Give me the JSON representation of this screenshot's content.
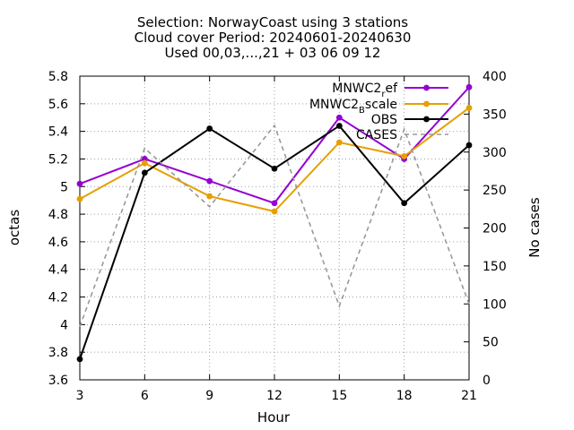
{
  "chart_data": {
    "type": "line",
    "title_lines": [
      "Selection: NorwayCoast using     3 stations",
      "Cloud cover   Period: 20240601-20240630",
      "Used 00,03,...,21 + 03 06 09 12"
    ],
    "xlabel": "Hour",
    "ylabel": "octas",
    "y2label": "No cases",
    "x": [
      3,
      6,
      9,
      12,
      15,
      18,
      21
    ],
    "xlim": [
      3,
      21
    ],
    "ylim": [
      3.6,
      5.8
    ],
    "y2lim": [
      0,
      400
    ],
    "x_ticks": [
      "3",
      "6",
      "9",
      "12",
      "15",
      "18",
      "21"
    ],
    "y_ticks": [
      "3.6",
      "3.8",
      "4",
      "4.2",
      "4.4",
      "4.6",
      "4.8",
      "5",
      "5.2",
      "5.4",
      "5.6",
      "5.8"
    ],
    "y2_ticks": [
      "0",
      "50",
      "100",
      "150",
      "200",
      "250",
      "300",
      "350",
      "400"
    ],
    "legend_position": "top-right",
    "grid": true,
    "series": [
      {
        "name": "MNWC2_ref",
        "legend_main": "MNWC2",
        "legend_sub": "r",
        "legend_rest": "ef",
        "axis": "y",
        "color": "#9400d3",
        "style": "solid",
        "marker": "filled-circle",
        "values": [
          5.02,
          5.2,
          5.04,
          4.88,
          5.5,
          5.2,
          5.72
        ]
      },
      {
        "name": "MNWC2_Bscale",
        "legend_main": "MNWC2",
        "legend_sub": "B",
        "legend_rest": "scale",
        "axis": "y",
        "color": "#e69f00",
        "style": "solid",
        "marker": "filled-circle",
        "values": [
          4.91,
          5.17,
          4.93,
          4.82,
          5.32,
          5.22,
          5.57
        ]
      },
      {
        "name": "OBS",
        "legend_main": "OBS",
        "legend_sub": "",
        "legend_rest": "",
        "axis": "y",
        "color": "#000000",
        "style": "solid",
        "marker": "filled-circle",
        "values": [
          3.75,
          5.1,
          5.42,
          5.13,
          5.44,
          4.88,
          5.3
        ]
      },
      {
        "name": "CASES",
        "legend_main": "CASES",
        "legend_sub": "",
        "legend_rest": "",
        "axis": "y2",
        "color": "#999999",
        "style": "dashed",
        "marker": "none",
        "values": [
          70,
          305,
          228,
          335,
          97,
          330,
          100
        ]
      }
    ]
  }
}
